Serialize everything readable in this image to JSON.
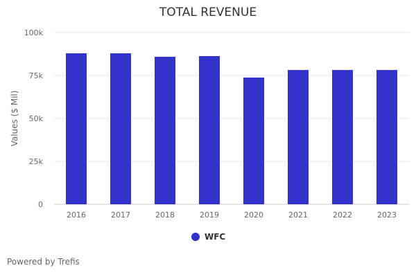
{
  "chart_data": {
    "type": "bar",
    "title": "TOTAL REVENUE",
    "ylabel": "Values ($ Mil)",
    "xlabel": "",
    "categories": [
      "2016",
      "2017",
      "2018",
      "2019",
      "2020",
      "2021",
      "2022",
      "2023"
    ],
    "series": [
      {
        "name": "WFC",
        "values": [
          87900,
          87900,
          85900,
          86300,
          73800,
          78200,
          78200,
          78200
        ]
      }
    ],
    "ylim": [
      0,
      100000
    ],
    "yticks": [
      0,
      25000,
      50000,
      75000,
      100000
    ],
    "ytick_labels": [
      "0",
      "25k",
      "50k",
      "75k",
      "100k"
    ],
    "grid": true,
    "legend": "bottom-center",
    "color": "#3333cc"
  },
  "footer": "Powered by Trefis"
}
